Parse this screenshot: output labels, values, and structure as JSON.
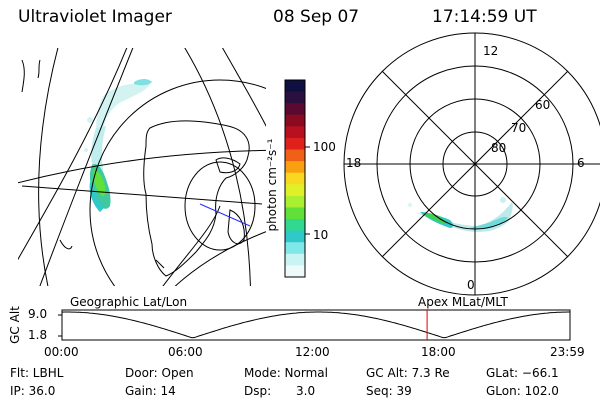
{
  "header": {
    "title": "Ultraviolet Imager",
    "date": "08 Sep 07",
    "time": "17:14:59 UT"
  },
  "colorbar": {
    "unit_label": "photon cm⁻²s⁻¹",
    "ticks": [
      "100",
      "10"
    ],
    "colors": [
      "#101040",
      "#2a1040",
      "#5a0a30",
      "#8a0a20",
      "#b81020",
      "#e0201a",
      "#f06018",
      "#f8a010",
      "#f8d820",
      "#e0f028",
      "#a8f030",
      "#60e038",
      "#30d890",
      "#30c8c8",
      "#80e8e8",
      "#c8f4f4",
      "#eefafa"
    ]
  },
  "polar_plot": {
    "labels_mlt": {
      "top": "12",
      "left": "18",
      "right": "6",
      "bottom": "0"
    },
    "labels_lat": [
      "60",
      "70",
      "80"
    ]
  },
  "timeline": {
    "left_label": "Geographic Lat/Lon",
    "right_label": "Apex MLat/MLT",
    "axis_title": "GC Alt",
    "y_ticks": [
      "9.0",
      "1.8"
    ],
    "x_ticks": [
      "00:00",
      "06:00",
      "12:00",
      "18:00",
      "23:59"
    ],
    "current_time_fraction": 0.7187
  },
  "status": {
    "flt": "Flt: LBHL",
    "ip": "IP: 36.0",
    "door": "Door: Open",
    "gain": "Gain: 14",
    "mode": "Mode: Normal",
    "dsp_label": "Dsp:",
    "dsp_value": "3.0",
    "gc_alt": "GC Alt: 7.3 Re",
    "seq": "Seq: 39",
    "glat": "GLat: −66.1",
    "glon": "GLon: 102.0"
  }
}
